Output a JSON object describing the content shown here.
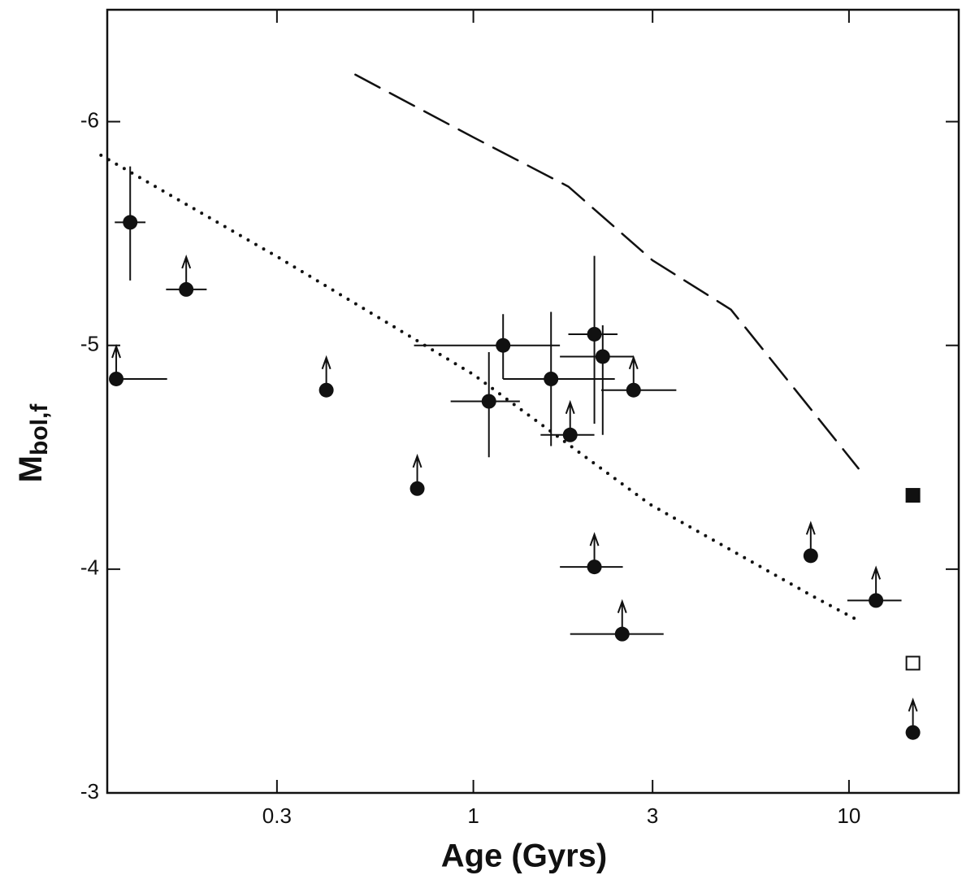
{
  "chart_data": {
    "type": "scatter",
    "xlabel": "Age (Gyrs)",
    "ylabel": {
      "main": "M",
      "sub": "bol,f"
    },
    "xscale": "log",
    "xlim": [
      0.106,
      19.6
    ],
    "ylim": [
      -3,
      -6.5
    ],
    "xticks": [
      0.3,
      1,
      3,
      10
    ],
    "yticks": [
      -6,
      -5,
      -4,
      -3
    ],
    "series": [
      {
        "marker": "circle",
        "color": "#111",
        "x": [
          0.112,
          0.122,
          0.172,
          0.406,
          0.709,
          1.1,
          1.2,
          1.61,
          1.81,
          2.1,
          2.21,
          2.67,
          2.1,
          2.49,
          7.91,
          11.8,
          14.8
        ],
        "y": [
          -4.85,
          -5.55,
          -5.25,
          -4.8,
          -4.36,
          -4.75,
          -5.0,
          -4.85,
          -4.6,
          -5.05,
          -4.95,
          -4.8,
          -4.01,
          -3.71,
          -4.06,
          -3.86,
          -3.27
        ],
        "arrow": [
          true,
          false,
          true,
          true,
          true,
          false,
          false,
          false,
          true,
          false,
          false,
          true,
          true,
          true,
          true,
          true,
          true
        ],
        "x_bars": [
          [
            0.112,
            0.153
          ],
          [
            0.111,
            0.134
          ],
          [
            0.152,
            0.195
          ],
          null,
          null,
          [
            0.87,
            1.33
          ],
          [
            0.695,
            1.7
          ],
          [
            1.2,
            2.38
          ],
          [
            1.51,
            2.1
          ],
          [
            1.79,
            2.42
          ],
          [
            1.7,
            2.67
          ],
          [
            2.19,
            3.47
          ],
          [
            1.7,
            2.5
          ],
          [
            1.81,
            3.21
          ],
          null,
          [
            9.9,
            13.8
          ],
          null
        ],
        "y_bars": [
          null,
          [
            -5.8,
            -5.29
          ],
          null,
          null,
          null,
          [
            -4.97,
            -4.5
          ],
          [
            -5.14,
            -4.85
          ],
          [
            -5.15,
            -4.55
          ],
          null,
          [
            -5.4,
            -4.65
          ],
          [
            -5.09,
            -4.6
          ],
          null,
          null,
          null,
          null,
          null,
          null
        ]
      },
      {
        "marker": "square",
        "color": "#111",
        "x": [
          14.8
        ],
        "y": [
          -4.33
        ]
      },
      {
        "marker": "open-square",
        "color": "#111",
        "x": [
          14.8
        ],
        "y": [
          -3.58
        ]
      },
      {
        "style": "dotted",
        "color": "#111",
        "x": [
          0.102,
          0.305,
          1,
          2.95,
          7.99,
          10.6
        ],
        "y": [
          -5.85,
          -5.39,
          -4.87,
          -4.29,
          -3.88,
          -3.77
        ]
      },
      {
        "style": "dashed",
        "color": "#111",
        "x": [
          0.485,
          1,
          1.79,
          3,
          4.85,
          10.6
        ],
        "y": [
          -6.21,
          -5.93,
          -5.71,
          -5.38,
          -5.16,
          -4.45
        ]
      }
    ]
  }
}
